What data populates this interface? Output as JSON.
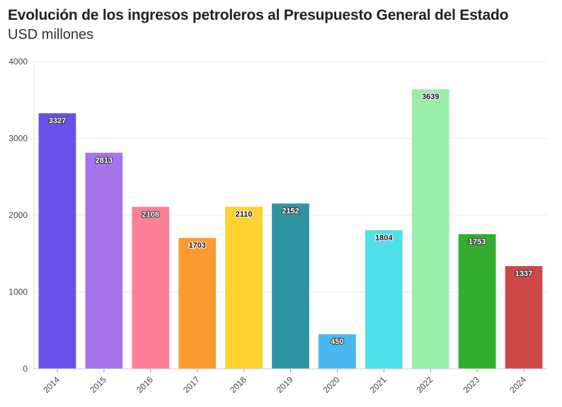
{
  "chart_data": {
    "type": "bar",
    "title": "Evolución de los ingresos petroleros al Presupuesto General del Estado",
    "subtitle": "USD millones",
    "xlabel": "",
    "ylabel": "",
    "ylim": [
      0,
      4000
    ],
    "yticks": [
      0,
      1000,
      2000,
      3000,
      4000
    ],
    "grid": true,
    "categories": [
      "2014",
      "2015",
      "2016",
      "2017",
      "2018",
      "2019",
      "2020",
      "2021",
      "2022",
      "2023",
      "2024"
    ],
    "values": [
      3327,
      2813,
      2108,
      1703,
      2110,
      2152,
      450,
      1804,
      3639,
      1753,
      1337
    ],
    "bar_colors": [
      "#6a50ea",
      "#a673ea",
      "#fd7f98",
      "#fd9a32",
      "#fed230",
      "#2e94a2",
      "#4ab7f1",
      "#50e0ea",
      "#9dedaa",
      "#33ac30",
      "#cd4948"
    ],
    "label_styles": [
      "light",
      "light",
      "light",
      "dark",
      "dark",
      "light",
      "light",
      "dark",
      "dark",
      "light",
      "light"
    ]
  }
}
